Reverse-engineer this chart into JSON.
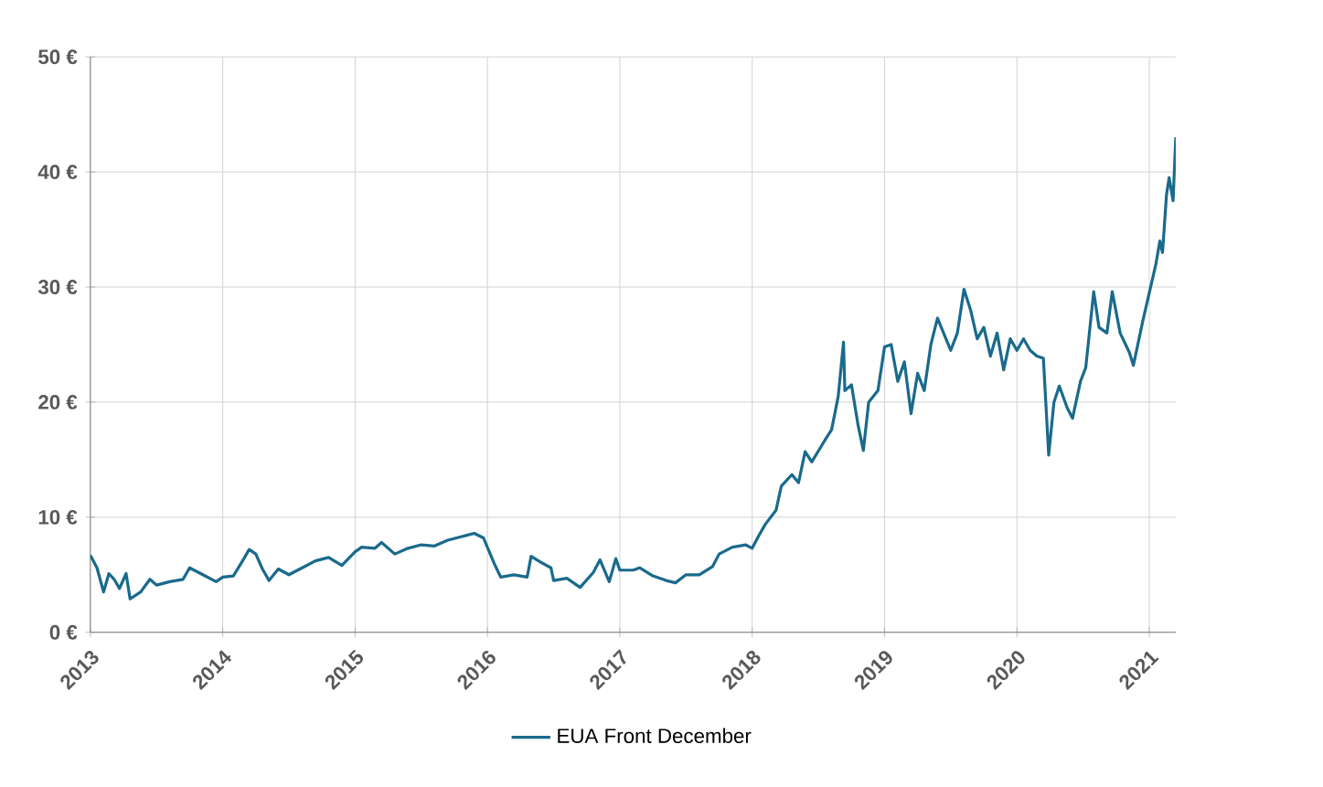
{
  "chart_data": {
    "type": "line",
    "legend": "bottom",
    "grid": true,
    "marker": "none",
    "line_style": "solid",
    "xlim": [
      2013,
      2021.2
    ],
    "ylim": [
      0,
      50
    ],
    "xticks": [
      2013,
      2014,
      2015,
      2016,
      2017,
      2018,
      2019,
      2020,
      2021
    ],
    "yticks": [
      {
        "value": 0,
        "label": "0 €"
      },
      {
        "value": 10,
        "label": "10 €"
      },
      {
        "value": 20,
        "label": "20 €"
      },
      {
        "value": 30,
        "label": "30 €"
      },
      {
        "value": 40,
        "label": "40 €"
      },
      {
        "value": 50,
        "label": "50 €"
      }
    ],
    "series": [
      {
        "name": "EUA Front December",
        "color": "#1a6a8c",
        "x": [
          2013.0,
          2013.05,
          2013.1,
          2013.14,
          2013.18,
          2013.22,
          2013.27,
          2013.3,
          2013.38,
          2013.45,
          2013.5,
          2013.6,
          2013.7,
          2013.75,
          2013.85,
          2013.95,
          2014.0,
          2014.08,
          2014.15,
          2014.2,
          2014.25,
          2014.3,
          2014.35,
          2014.42,
          2014.5,
          2014.6,
          2014.7,
          2014.8,
          2014.9,
          2015.0,
          2015.05,
          2015.15,
          2015.2,
          2015.3,
          2015.4,
          2015.5,
          2015.6,
          2015.7,
          2015.8,
          2015.9,
          2015.97,
          2016.05,
          2016.1,
          2016.2,
          2016.3,
          2016.33,
          2016.4,
          2016.48,
          2016.5,
          2016.6,
          2016.7,
          2016.8,
          2016.85,
          2016.92,
          2016.97,
          2017.0,
          2017.1,
          2017.15,
          2017.25,
          2017.35,
          2017.42,
          2017.5,
          2017.6,
          2017.7,
          2017.75,
          2017.85,
          2017.95,
          2018.0,
          2018.05,
          2018.1,
          2018.18,
          2018.22,
          2018.3,
          2018.35,
          2018.4,
          2018.45,
          2018.55,
          2018.6,
          2018.65,
          2018.69,
          2018.7,
          2018.75,
          2018.8,
          2018.84,
          2018.88,
          2018.95,
          2019.0,
          2019.05,
          2019.1,
          2019.15,
          2019.2,
          2019.25,
          2019.3,
          2019.35,
          2019.4,
          2019.5,
          2019.55,
          2019.6,
          2019.65,
          2019.7,
          2019.75,
          2019.8,
          2019.85,
          2019.9,
          2019.95,
          2020.0,
          2020.05,
          2020.1,
          2020.15,
          2020.2,
          2020.24,
          2020.28,
          2020.32,
          2020.38,
          2020.42,
          2020.48,
          2020.52,
          2020.58,
          2020.62,
          2020.68,
          2020.72,
          2020.78,
          2020.85,
          2020.88,
          2020.95,
          2021.0,
          2021.05,
          2021.08,
          2021.1,
          2021.13,
          2021.15,
          2021.18,
          2021.2
        ],
        "values": [
          6.7,
          5.6,
          3.5,
          5.1,
          4.6,
          3.8,
          5.1,
          2.9,
          3.5,
          4.6,
          4.1,
          4.4,
          4.6,
          5.6,
          5.0,
          4.4,
          4.8,
          4.9,
          6.2,
          7.2,
          6.8,
          5.5,
          4.5,
          5.5,
          5.0,
          5.6,
          6.2,
          6.5,
          5.8,
          7.0,
          7.4,
          7.3,
          7.8,
          6.8,
          7.3,
          7.6,
          7.5,
          8.0,
          8.3,
          8.6,
          8.2,
          6.0,
          4.8,
          5.0,
          4.8,
          6.6,
          6.1,
          5.6,
          4.5,
          4.7,
          3.9,
          5.2,
          6.3,
          4.4,
          6.4,
          5.4,
          5.4,
          5.6,
          4.9,
          4.5,
          4.3,
          5.0,
          5.0,
          5.7,
          6.8,
          7.4,
          7.6,
          7.3,
          8.4,
          9.4,
          10.6,
          12.7,
          13.7,
          13.0,
          15.7,
          14.8,
          16.7,
          17.6,
          20.5,
          25.2,
          21.0,
          21.5,
          18.0,
          15.8,
          20.0,
          21.0,
          24.8,
          25.0,
          21.8,
          23.5,
          19.0,
          22.5,
          21.0,
          25.0,
          27.3,
          24.5,
          26.0,
          29.8,
          28.0,
          25.5,
          26.5,
          24.0,
          26.0,
          22.8,
          25.5,
          24.5,
          25.5,
          24.5,
          24.0,
          23.8,
          15.4,
          20.0,
          21.4,
          19.5,
          18.6,
          21.8,
          23.0,
          29.6,
          26.5,
          26.0,
          29.6,
          26.0,
          24.3,
          23.2,
          27.0,
          29.5,
          32.0,
          34.0,
          33.0,
          38.0,
          39.5,
          37.5,
          43.0
        ]
      }
    ]
  }
}
